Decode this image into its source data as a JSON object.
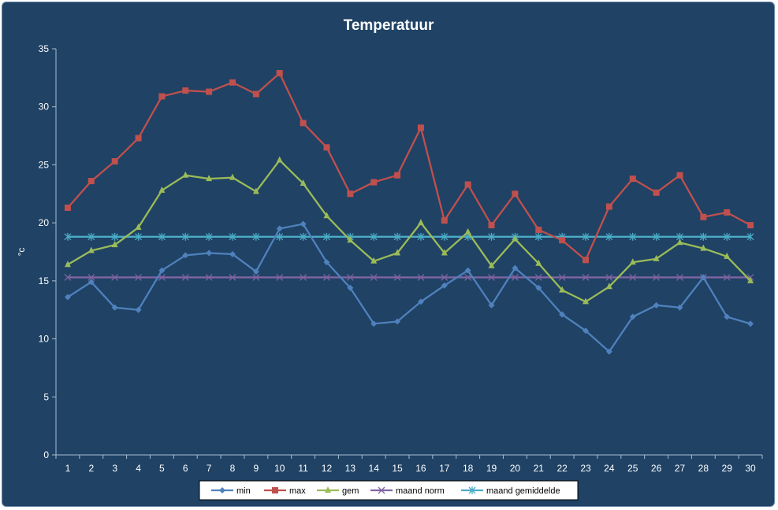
{
  "chart_data": {
    "type": "line",
    "title": "Temperatuur",
    "xlabel": "",
    "ylabel": "°c",
    "ylim": [
      0,
      35
    ],
    "yticks": [
      0,
      5,
      10,
      15,
      20,
      25,
      30,
      35
    ],
    "grid": false,
    "legend_position": "bottom",
    "background_color": "#1f4265",
    "categories": [
      "1",
      "2",
      "3",
      "4",
      "5",
      "6",
      "7",
      "8",
      "9",
      "10",
      "11",
      "12",
      "13",
      "14",
      "15",
      "16",
      "17",
      "18",
      "19",
      "20",
      "21",
      "22",
      "23",
      "24",
      "25",
      "26",
      "27",
      "28",
      "29",
      "30"
    ],
    "series": [
      {
        "name": "min",
        "color": "#4f81bd",
        "marker": "diamond",
        "values": [
          13.6,
          14.9,
          12.7,
          12.5,
          15.9,
          17.2,
          17.4,
          17.3,
          15.8,
          19.5,
          19.9,
          16.6,
          14.4,
          11.3,
          11.5,
          13.2,
          14.6,
          15.9,
          12.9,
          16.1,
          14.4,
          12.1,
          10.7,
          8.9,
          11.9,
          12.9,
          12.7,
          15.3,
          11.9,
          11.3
        ]
      },
      {
        "name": "max",
        "color": "#c0504d",
        "marker": "square",
        "values": [
          21.3,
          23.6,
          25.3,
          27.3,
          30.9,
          31.4,
          31.3,
          32.1,
          31.1,
          32.9,
          28.6,
          26.5,
          22.5,
          23.5,
          24.1,
          28.2,
          20.2,
          23.3,
          19.8,
          22.5,
          19.4,
          18.5,
          16.8,
          21.4,
          23.8,
          22.6,
          24.1,
          20.5,
          20.9,
          19.8
        ]
      },
      {
        "name": "gem",
        "color": "#9bbb59",
        "marker": "triangle",
        "values": [
          16.4,
          17.6,
          18.1,
          19.6,
          22.8,
          24.1,
          23.8,
          23.9,
          22.7,
          25.4,
          23.4,
          20.6,
          18.5,
          16.7,
          17.4,
          20.0,
          17.4,
          19.2,
          16.3,
          18.6,
          16.5,
          14.2,
          13.2,
          14.5,
          16.6,
          16.9,
          18.3,
          17.8,
          17.1,
          15.0
        ]
      },
      {
        "name": "maand norm",
        "color": "#8064a2",
        "marker": "x",
        "values": [
          15.3,
          15.3,
          15.3,
          15.3,
          15.3,
          15.3,
          15.3,
          15.3,
          15.3,
          15.3,
          15.3,
          15.3,
          15.3,
          15.3,
          15.3,
          15.3,
          15.3,
          15.3,
          15.3,
          15.3,
          15.3,
          15.3,
          15.3,
          15.3,
          15.3,
          15.3,
          15.3,
          15.3,
          15.3,
          15.3
        ]
      },
      {
        "name": "maand gemiddelde",
        "color": "#4bacc6",
        "marker": "star",
        "values": [
          18.8,
          18.8,
          18.8,
          18.8,
          18.8,
          18.8,
          18.8,
          18.8,
          18.8,
          18.8,
          18.8,
          18.8,
          18.8,
          18.8,
          18.8,
          18.8,
          18.8,
          18.8,
          18.8,
          18.8,
          18.8,
          18.8,
          18.8,
          18.8,
          18.8,
          18.8,
          18.8,
          18.8,
          18.8,
          18.8
        ]
      }
    ]
  }
}
